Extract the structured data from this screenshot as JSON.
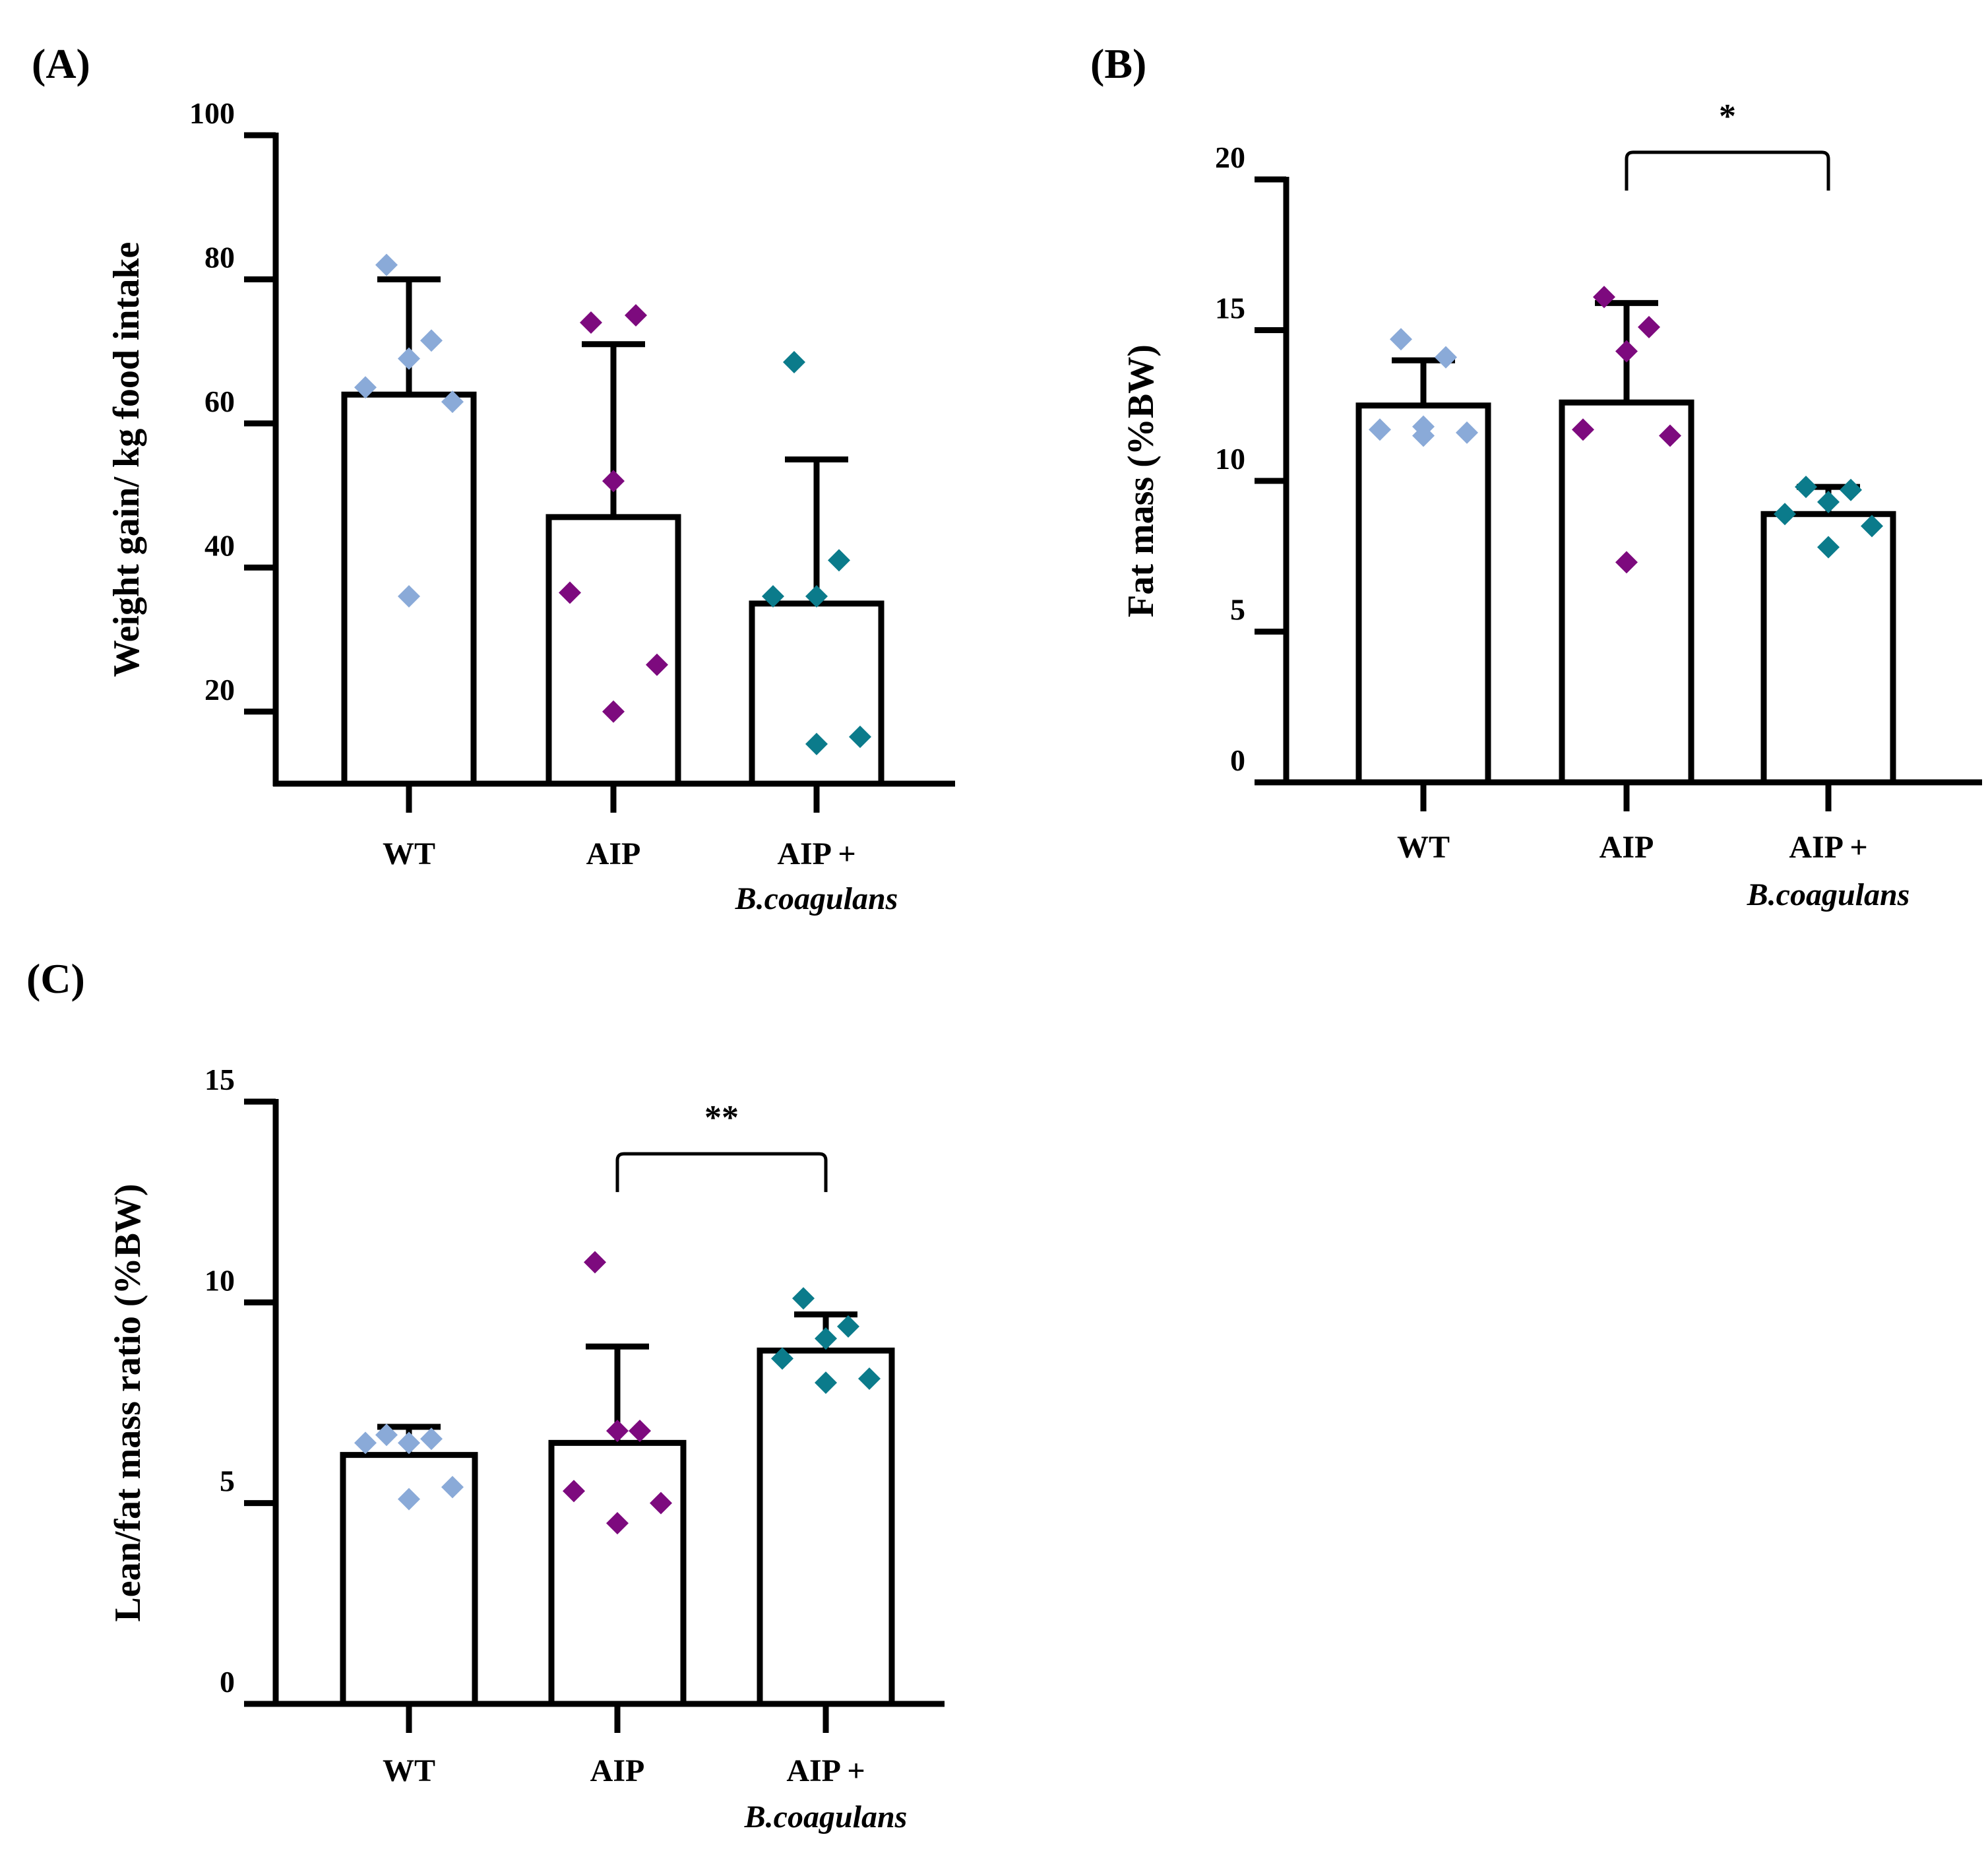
{
  "colors": {
    "WT": "#8aaad8",
    "AIP": "#7d0a7e",
    "AIP_Bc": "#0b7b8b",
    "bar_fill": "#ffffff",
    "ink": "#000000"
  },
  "chart_data": [
    {
      "panel": "(A)",
      "type": "bar",
      "ylabel": "Weight gain/ kg food intake",
      "ylim": [
        10,
        100
      ],
      "yticks": [
        20,
        40,
        60,
        80,
        100
      ],
      "categories": [
        {
          "line1": "WT",
          "line2": ""
        },
        {
          "line1": "AIP",
          "line2": ""
        },
        {
          "line1": "AIP +",
          "line2": "B.coagulans"
        }
      ],
      "values": [
        64,
        47,
        35
      ],
      "error": [
        80,
        71,
        55
      ],
      "points": [
        [
          82,
          71.5,
          69,
          65,
          63,
          36
        ],
        [
          74,
          75,
          52,
          36.5,
          26.5,
          20
        ],
        [
          68.5,
          41,
          36,
          36,
          16.5,
          15.5
        ]
      ],
      "significance": []
    },
    {
      "panel": "(B)",
      "type": "bar",
      "ylabel": "Fat mass (%BW)",
      "ylim": [
        0,
        20
      ],
      "yticks": [
        0,
        5,
        10,
        15,
        20
      ],
      "categories": [
        {
          "line1": "WT",
          "line2": ""
        },
        {
          "line1": "AIP",
          "line2": ""
        },
        {
          "line1": "AIP +",
          "line2": "B.coagulans"
        }
      ],
      "values": [
        12.5,
        12.6,
        8.9
      ],
      "error": [
        14,
        15.9,
        9.8
      ],
      "points": [
        [
          14.7,
          14.1,
          11.8,
          11.7,
          11.6,
          11.5
        ],
        [
          16.1,
          15.1,
          14.3,
          11.7,
          11.5,
          7.3
        ],
        [
          9.8,
          9.7,
          9.3,
          8.9,
          8.5,
          7.8
        ]
      ],
      "significance": [
        {
          "from": 1,
          "to": 2,
          "label": "*",
          "y": 20.9
        }
      ]
    },
    {
      "panel": "(C)",
      "type": "bar",
      "ylabel": "Lean/fat mass ratio (%BW)",
      "ylim": [
        0,
        15
      ],
      "yticks": [
        0,
        5,
        10,
        15
      ],
      "categories": [
        {
          "line1": "WT",
          "line2": ""
        },
        {
          "line1": "AIP",
          "line2": ""
        },
        {
          "line1": "AIP +",
          "line2": "B.coagulans"
        }
      ],
      "values": [
        6.2,
        6.5,
        8.8
      ],
      "error": [
        6.9,
        8.9,
        9.7
      ],
      "points": [
        [
          6.7,
          6.6,
          6.5,
          6.5,
          5.4,
          5.1
        ],
        [
          11,
          6.8,
          6.8,
          5.3,
          5,
          4.5
        ],
        [
          10.1,
          9.4,
          9.1,
          8.6,
          8.1,
          8
        ]
      ],
      "significance": [
        {
          "from": 1,
          "to": 2,
          "label": "**",
          "y": 13.7
        }
      ]
    }
  ]
}
